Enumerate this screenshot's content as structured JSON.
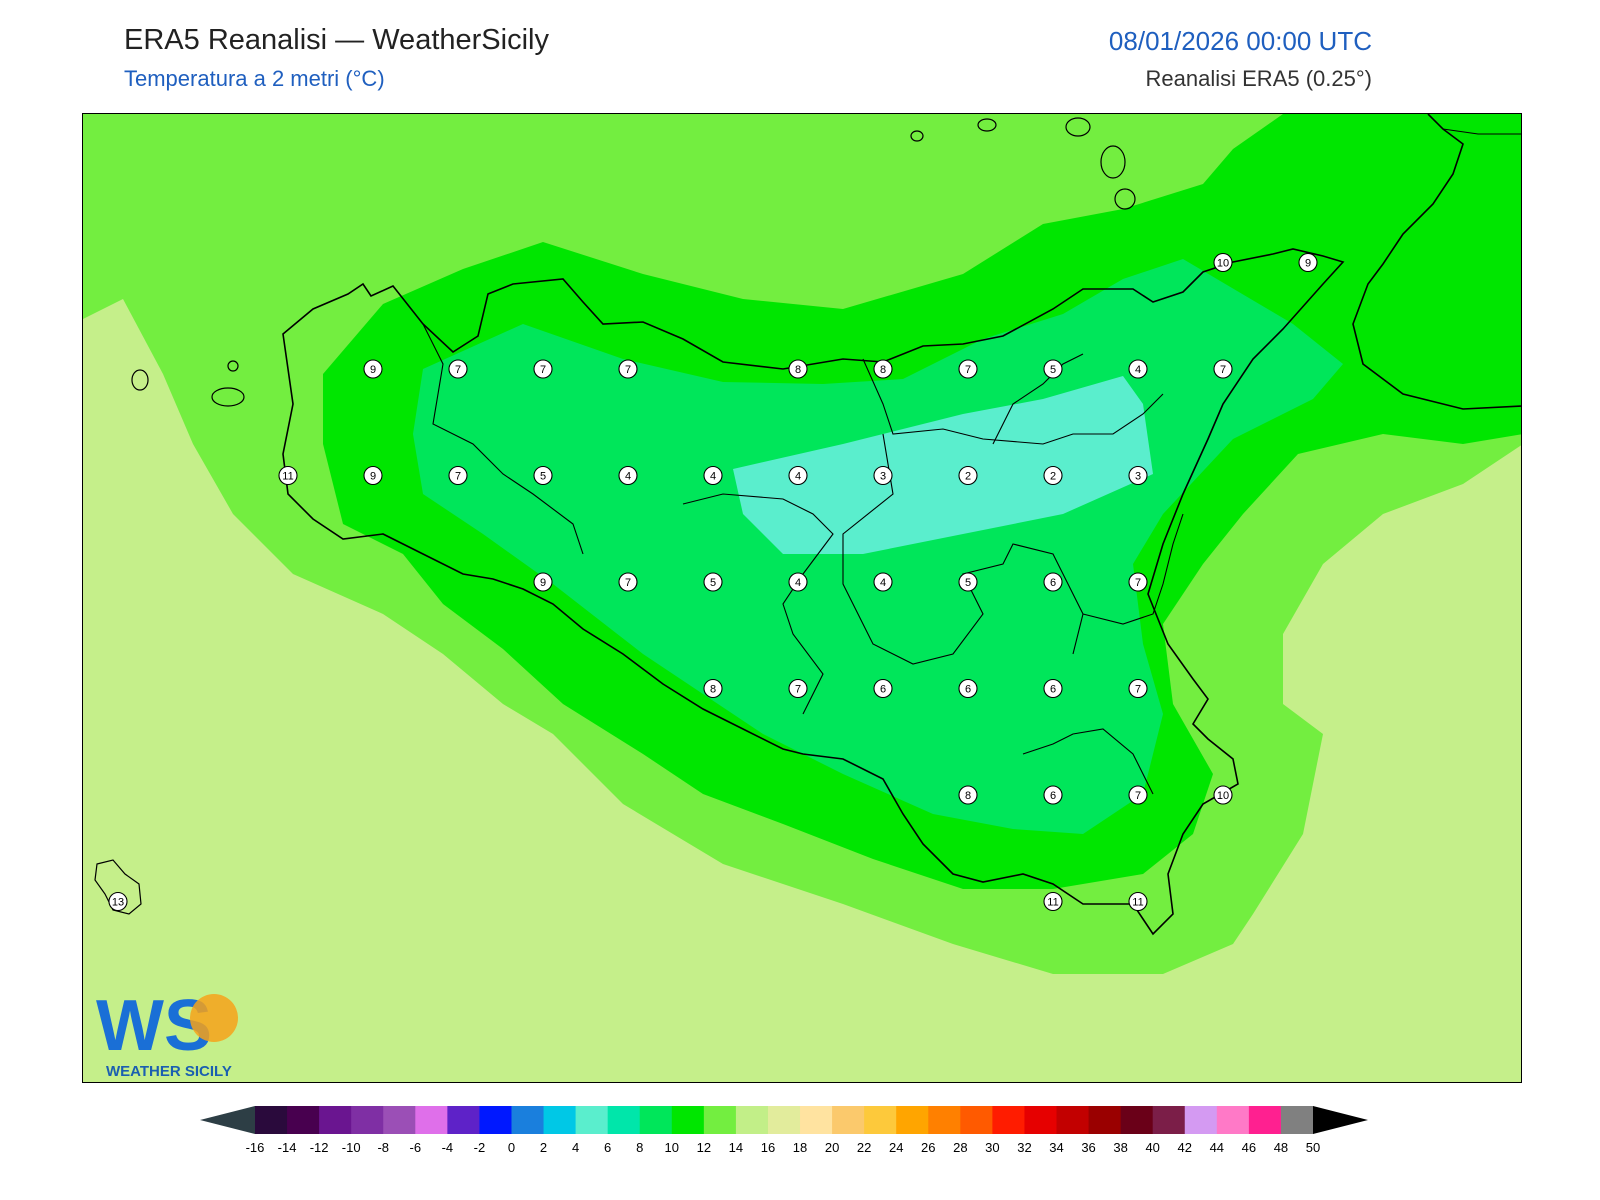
{
  "header": {
    "title": "ERA5 Reanalisi — WeatherSicily",
    "subtitle": "Temperatura a 2 metri (°C)",
    "datetime": "08/01/2026 00:00 UTC",
    "source": "Reanalisi ERA5 (0.25°)"
  },
  "logo": {
    "letters": "WS",
    "brand": "WEATHER SICILY"
  },
  "stations": [
    {
      "v": "9",
      "lon": 12.5,
      "lat": 38.25
    },
    {
      "v": "7",
      "lon": 12.75,
      "lat": 38.25
    },
    {
      "v": "7",
      "lon": 13.0,
      "lat": 38.25
    },
    {
      "v": "7",
      "lon": 13.25,
      "lat": 38.25
    },
    {
      "v": "8",
      "lon": 13.75,
      "lat": 38.25
    },
    {
      "v": "8",
      "lon": 14.0,
      "lat": 38.25
    },
    {
      "v": "7",
      "lon": 14.25,
      "lat": 38.25
    },
    {
      "v": "5",
      "lon": 14.5,
      "lat": 38.25
    },
    {
      "v": "4",
      "lon": 14.75,
      "lat": 38.25
    },
    {
      "v": "7",
      "lon": 15.0,
      "lat": 38.25
    },
    {
      "v": "10",
      "lon": 15.0,
      "lat": 38.5
    },
    {
      "v": "9",
      "lon": 15.25,
      "lat": 38.5
    },
    {
      "v": "11",
      "lon": 12.25,
      "lat": 38.0
    },
    {
      "v": "9",
      "lon": 12.5,
      "lat": 38.0
    },
    {
      "v": "7",
      "lon": 12.75,
      "lat": 38.0
    },
    {
      "v": "5",
      "lon": 13.0,
      "lat": 38.0
    },
    {
      "v": "4",
      "lon": 13.25,
      "lat": 38.0
    },
    {
      "v": "4",
      "lon": 13.5,
      "lat": 38.0
    },
    {
      "v": "4",
      "lon": 13.75,
      "lat": 38.0
    },
    {
      "v": "3",
      "lon": 14.0,
      "lat": 38.0
    },
    {
      "v": "2",
      "lon": 14.25,
      "lat": 38.0
    },
    {
      "v": "2",
      "lon": 14.5,
      "lat": 38.0
    },
    {
      "v": "3",
      "lon": 14.75,
      "lat": 38.0
    },
    {
      "v": "9",
      "lon": 13.0,
      "lat": 37.75
    },
    {
      "v": "7",
      "lon": 13.25,
      "lat": 37.75
    },
    {
      "v": "5",
      "lon": 13.5,
      "lat": 37.75
    },
    {
      "v": "4",
      "lon": 13.75,
      "lat": 37.75
    },
    {
      "v": "4",
      "lon": 14.0,
      "lat": 37.75
    },
    {
      "v": "5",
      "lon": 14.25,
      "lat": 37.75
    },
    {
      "v": "6",
      "lon": 14.5,
      "lat": 37.75
    },
    {
      "v": "7",
      "lon": 14.75,
      "lat": 37.75
    },
    {
      "v": "8",
      "lon": 13.5,
      "lat": 37.5
    },
    {
      "v": "7",
      "lon": 13.75,
      "lat": 37.5
    },
    {
      "v": "6",
      "lon": 14.0,
      "lat": 37.5
    },
    {
      "v": "6",
      "lon": 14.25,
      "lat": 37.5
    },
    {
      "v": "6",
      "lon": 14.5,
      "lat": 37.5
    },
    {
      "v": "7",
      "lon": 14.75,
      "lat": 37.5
    },
    {
      "v": "8",
      "lon": 14.25,
      "lat": 37.25
    },
    {
      "v": "6",
      "lon": 14.5,
      "lat": 37.25
    },
    {
      "v": "7",
      "lon": 14.75,
      "lat": 37.25
    },
    {
      "v": "10",
      "lon": 15.0,
      "lat": 37.25
    },
    {
      "v": "11",
      "lon": 14.5,
      "lat": 37.0
    },
    {
      "v": "11",
      "lon": 14.75,
      "lat": 37.0
    },
    {
      "v": "13",
      "lon": 11.75,
      "lat": 37.0
    }
  ],
  "colorbar": {
    "labels": [
      "-16",
      "-14",
      "-12",
      "-10",
      "-8",
      "-6",
      "-4",
      "-2",
      "0",
      "2",
      "4",
      "6",
      "8",
      "10",
      "12",
      "14",
      "16",
      "18",
      "20",
      "22",
      "24",
      "26",
      "28",
      "30",
      "32",
      "34",
      "36",
      "38",
      "40",
      "42",
      "44",
      "46",
      "48",
      "50"
    ],
    "colors": [
      "#2a0a3c",
      "#48004f",
      "#6a1590",
      "#7f2fa4",
      "#9b4fb6",
      "#df6fea",
      "#5e22c8",
      "#0018ff",
      "#1a7fdd",
      "#00c8e6",
      "#5aeecd",
      "#00e6aa",
      "#00e65a",
      "#00e600",
      "#73ee40",
      "#c2ef88",
      "#e2ec9c",
      "#ffe3a0",
      "#fbc96c",
      "#fdc93b",
      "#ffa500",
      "#ff8000",
      "#ff5a00",
      "#ff1c00",
      "#e60000",
      "#c20000",
      "#9a0000",
      "#6a0018",
      "#7b1e48",
      "#d49af2",
      "#ff79c7",
      "#ff2090",
      "#808080",
      "#3c3c3c"
    ],
    "end_low": "#2d3e45",
    "end_high": "#000000"
  }
}
